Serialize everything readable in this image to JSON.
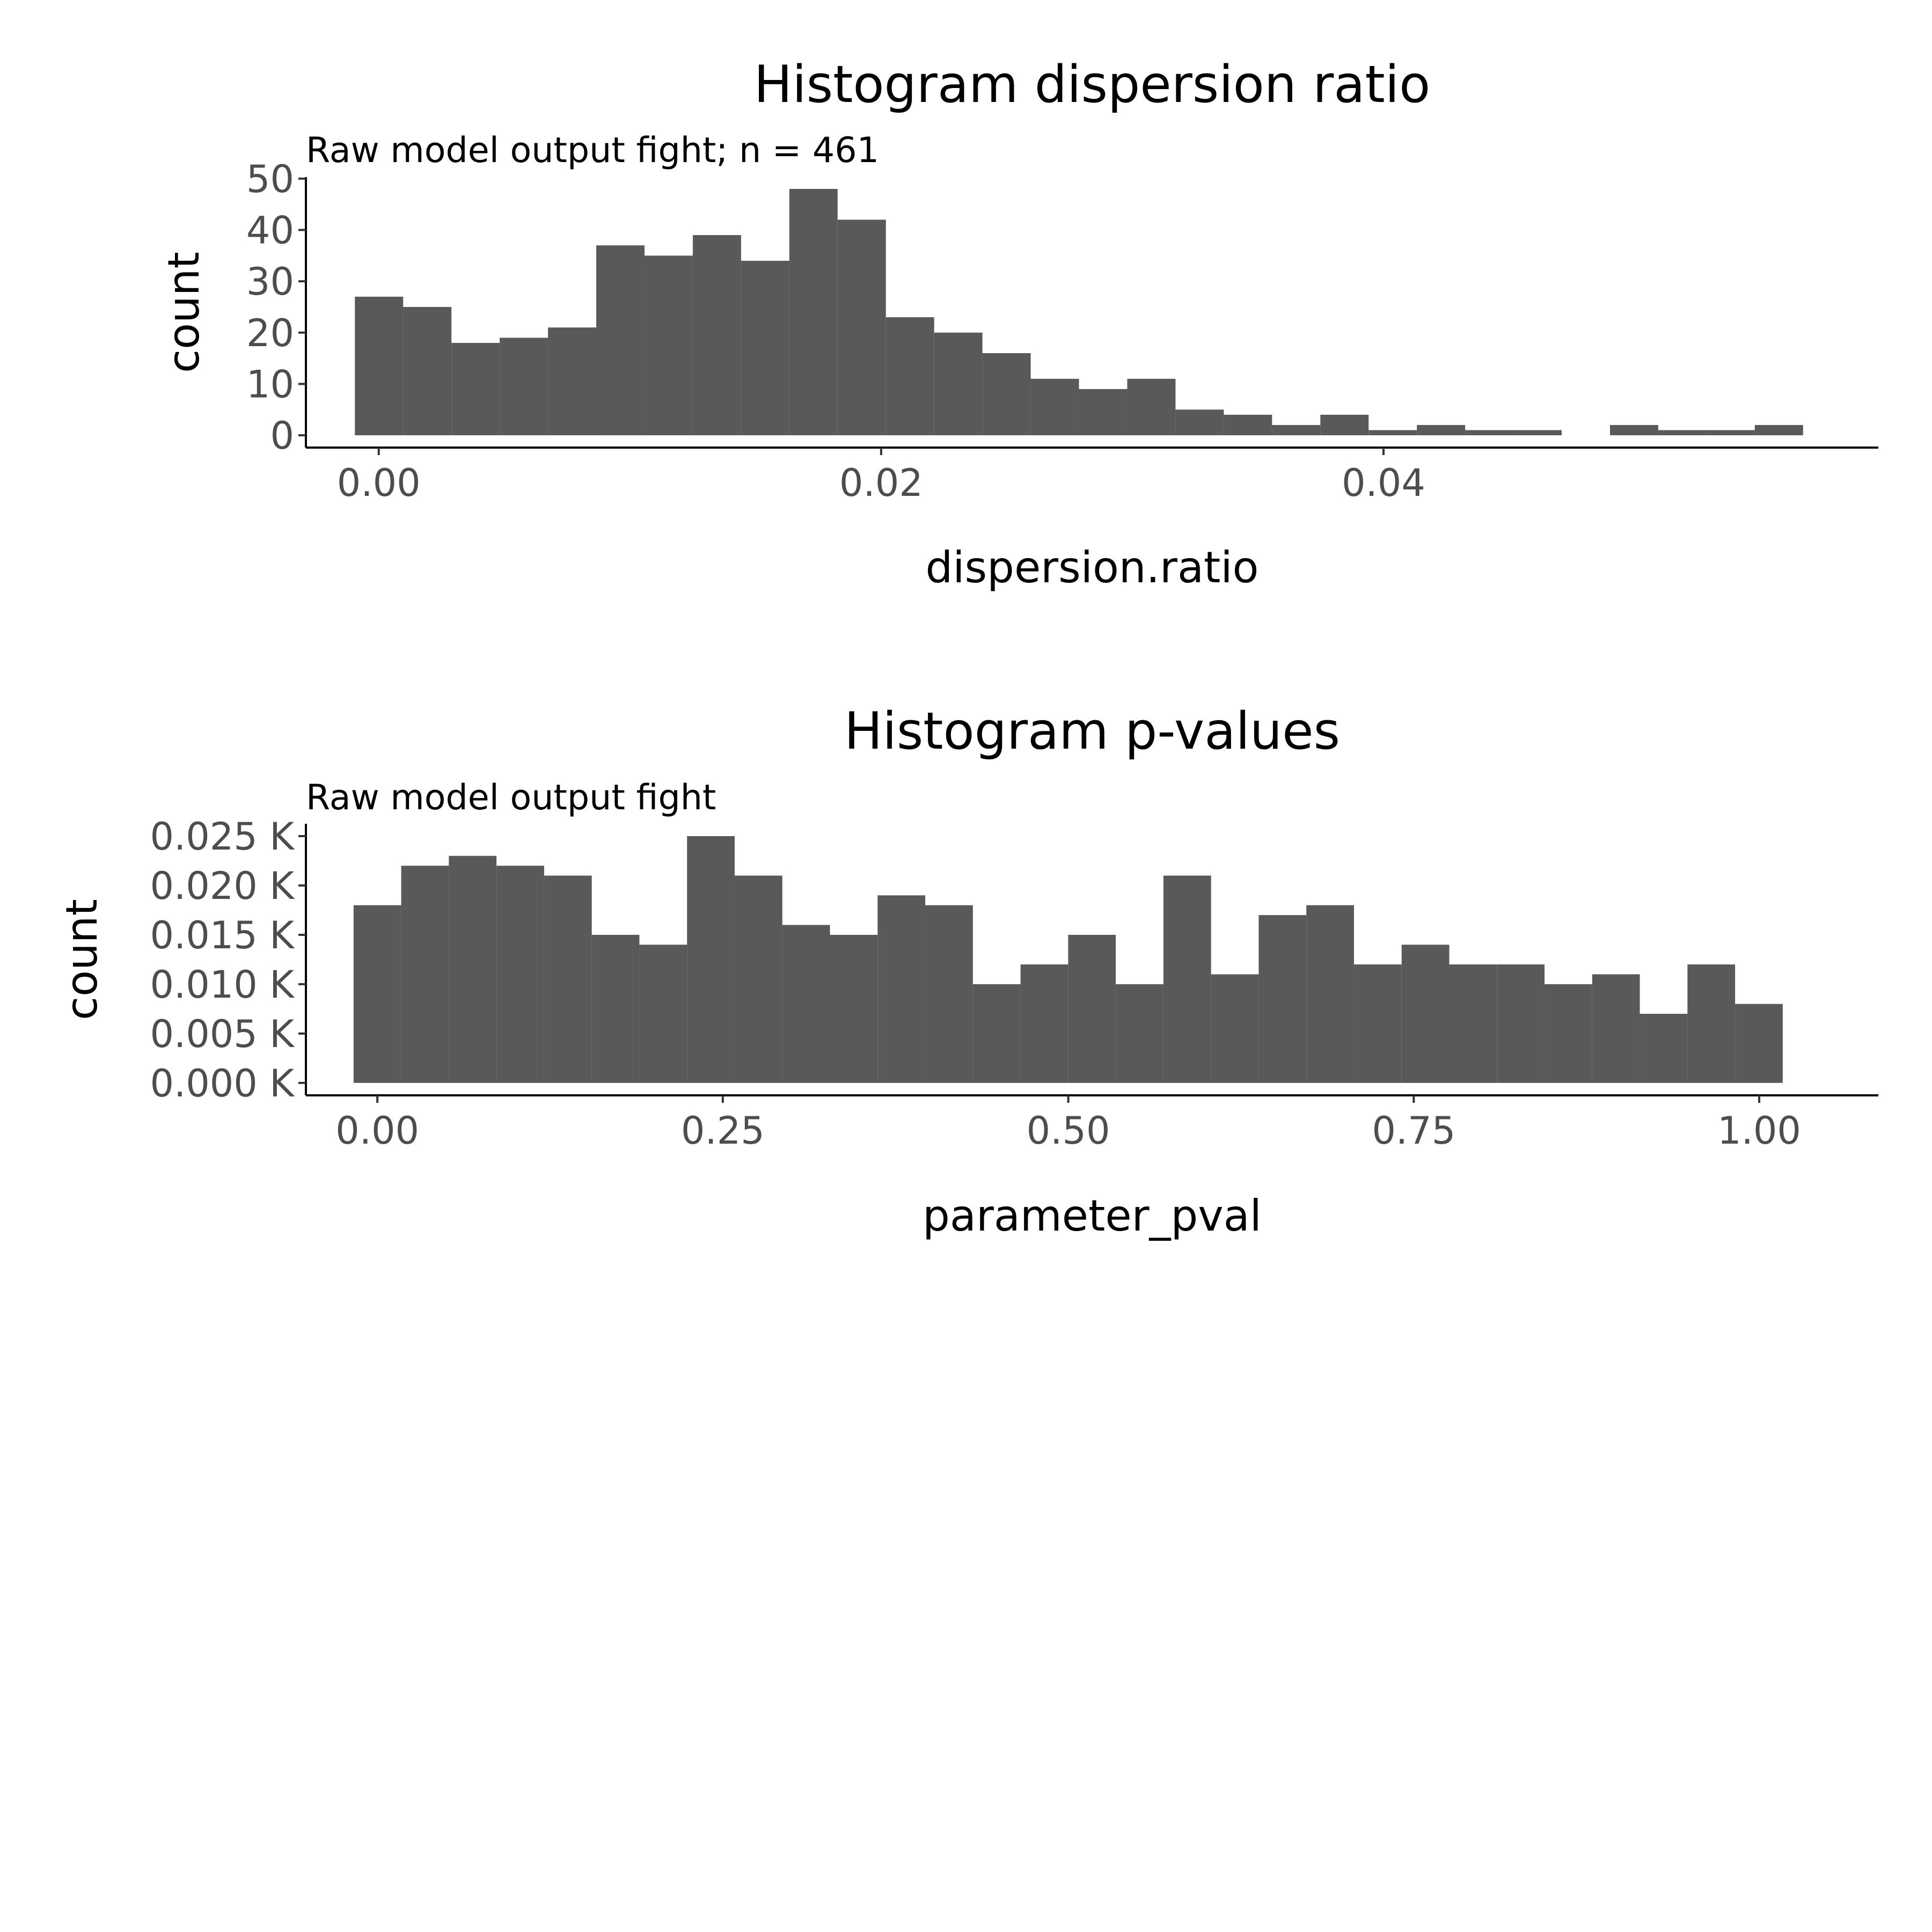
{
  "chart_data": [
    {
      "type": "bar",
      "title": "Histogram dispersion ratio",
      "subtitle": "Raw model output fight; n = 461",
      "xlabel": "dispersion.ratio",
      "ylabel": "count",
      "x_ticks": [
        {
          "value": 0.0,
          "label": "0.00"
        },
        {
          "value": 0.02,
          "label": "0.02"
        },
        {
          "value": 0.04,
          "label": "0.04"
        }
      ],
      "y_ticks": [
        {
          "value": 0,
          "label": "0"
        },
        {
          "value": 10,
          "label": "10"
        },
        {
          "value": 20,
          "label": "20"
        },
        {
          "value": 30,
          "label": "30"
        },
        {
          "value": 40,
          "label": "40"
        },
        {
          "value": 50,
          "label": "50"
        }
      ],
      "xlim": [
        -0.0029,
        0.0597
      ],
      "ylim": [
        -2.4,
        50.3
      ],
      "bin_start": -0.00095,
      "bin_width": 0.0019218,
      "values": [
        27,
        25,
        18,
        19,
        21,
        37,
        35,
        39,
        34,
        48,
        42,
        23,
        20,
        16,
        11,
        9,
        11,
        5,
        4,
        2,
        4,
        1,
        2,
        1,
        1,
        0,
        2,
        1,
        1,
        2
      ],
      "bar_color": "#595959",
      "grid": false,
      "legend": "none"
    },
    {
      "type": "bar",
      "title": "Histogram p-values",
      "subtitle": "Raw model output fight",
      "xlabel": "parameter_pval",
      "ylabel": "count",
      "x_ticks": [
        {
          "value": 0.0,
          "label": "0.00"
        },
        {
          "value": 0.25,
          "label": "0.25"
        },
        {
          "value": 0.5,
          "label": "0.50"
        },
        {
          "value": 0.75,
          "label": "0.75"
        },
        {
          "value": 1.0,
          "label": "1.00"
        }
      ],
      "y_ticks": [
        {
          "value": 0,
          "label": "0.000 K"
        },
        {
          "value": 5,
          "label": "0.005 K"
        },
        {
          "value": 10,
          "label": "0.010 K"
        },
        {
          "value": 15,
          "label": "0.015 K"
        },
        {
          "value": 20,
          "label": "0.020 K"
        },
        {
          "value": 25,
          "label": "0.025 K"
        }
      ],
      "xlim": [
        -0.0517,
        1.0862
      ],
      "ylim": [
        -1.26,
        26.25
      ],
      "bin_start": -0.0172,
      "bin_width": 0.034474,
      "values": [
        18,
        22,
        23,
        22,
        21,
        15,
        14,
        25,
        21,
        16,
        15,
        19,
        18,
        10,
        12,
        15,
        10,
        21,
        11,
        17,
        18,
        12,
        14,
        12,
        12,
        10,
        11,
        7,
        12,
        8
      ],
      "bar_color": "#595959",
      "grid": false,
      "legend": "none"
    }
  ]
}
